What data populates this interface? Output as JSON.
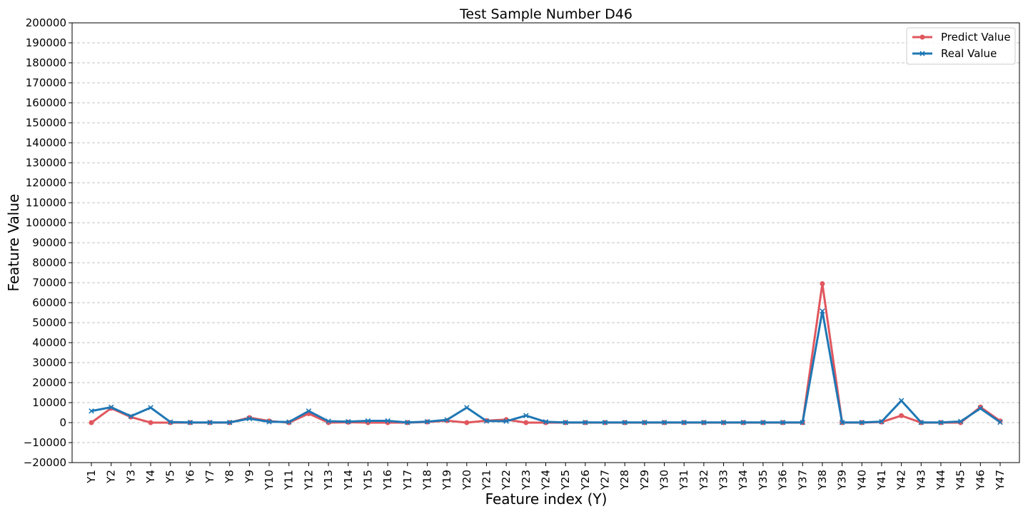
{
  "chart_data": {
    "type": "line",
    "title": "Test Sample Number D46",
    "xlabel": "Feature index (Y)",
    "ylabel": "Feature Value",
    "ylim": [
      -20000,
      200000
    ],
    "yticks": [
      -20000,
      -10000,
      0,
      10000,
      20000,
      30000,
      40000,
      50000,
      60000,
      70000,
      80000,
      90000,
      100000,
      110000,
      120000,
      130000,
      140000,
      150000,
      160000,
      170000,
      180000,
      190000,
      200000
    ],
    "ytick_labels": [
      "−20000",
      "−10000",
      "0",
      "10000",
      "20000",
      "30000",
      "40000",
      "50000",
      "60000",
      "70000",
      "80000",
      "90000",
      "100000",
      "110000",
      "120000",
      "130000",
      "140000",
      "150000",
      "160000",
      "170000",
      "180000",
      "190000",
      "200000"
    ],
    "grid": "horizontal dashed",
    "legend_position": "top-right",
    "categories": [
      "Y1",
      "Y2",
      "Y3",
      "Y4",
      "Y5",
      "Y6",
      "Y7",
      "Y8",
      "Y9",
      "Y10",
      "Y11",
      "Y12",
      "Y13",
      "Y14",
      "Y15",
      "Y16",
      "Y17",
      "Y18",
      "Y19",
      "Y20",
      "Y21",
      "Y22",
      "Y23",
      "Y24",
      "Y25",
      "Y26",
      "Y27",
      "Y28",
      "Y29",
      "Y30",
      "Y31",
      "Y32",
      "Y33",
      "Y34",
      "Y35",
      "Y36",
      "Y37",
      "Y38",
      "Y39",
      "Y40",
      "Y41",
      "Y42",
      "Y43",
      "Y44",
      "Y45",
      "Y46",
      "Y47"
    ],
    "series": [
      {
        "name": "Predict Value",
        "color": "#e0575e",
        "marker": "circle",
        "values": [
          0,
          7200,
          2800,
          0,
          0,
          0,
          0,
          0,
          2500,
          800,
          0,
          4500,
          0,
          200,
          0,
          0,
          0,
          300,
          1000,
          0,
          1000,
          1500,
          0,
          0,
          0,
          0,
          0,
          0,
          0,
          0,
          0,
          0,
          0,
          0,
          0,
          0,
          0,
          69500,
          0,
          0,
          300,
          3500,
          0,
          0,
          0,
          7800,
          800
        ]
      },
      {
        "name": "Real Value",
        "color": "#1f77b4",
        "marker": "x",
        "values": [
          5800,
          7700,
          3200,
          7500,
          300,
          100,
          100,
          100,
          2000,
          400,
          300,
          5800,
          700,
          500,
          900,
          900,
          100,
          500,
          1400,
          7500,
          800,
          700,
          3500,
          400,
          100,
          100,
          100,
          100,
          100,
          100,
          100,
          100,
          100,
          100,
          100,
          100,
          100,
          55800,
          100,
          100,
          500,
          11000,
          100,
          100,
          600,
          7100,
          200
        ]
      }
    ]
  }
}
